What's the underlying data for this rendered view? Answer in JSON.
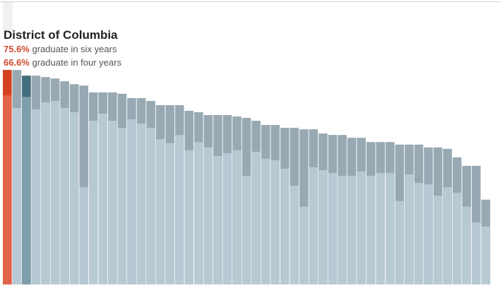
{
  "highlight": {
    "name": "District of Columbia",
    "six_year_value": "75.6%",
    "six_year_text": "graduate in six years",
    "four_year_value": "66.6%",
    "four_year_text": "graduate in four years"
  },
  "colors": {
    "highlight_four": "#e0644a",
    "highlight_six": "#d4421f",
    "selected_four": "#7f9eab",
    "selected_six": "#426e7e",
    "four_year": "#b7c9d3",
    "six_year": "#98a9b3",
    "accent_text": "#d04a2c"
  },
  "chart_data": {
    "type": "bar",
    "ylim": [
      0,
      100
    ],
    "highlight_index": 0,
    "selected_index": 2,
    "series": [
      {
        "name": "six years",
        "values": [
          75.6,
          75.6,
          73.6,
          73.6,
          73.1,
          72.6,
          71.6,
          70.6,
          70.1,
          67.7,
          67.7,
          67.7,
          67.2,
          65.7,
          65.7,
          64.7,
          63.2,
          63.2,
          63.2,
          61.2,
          60.7,
          59.7,
          59.7,
          59.7,
          59.2,
          58.7,
          57.7,
          56.2,
          56.2,
          55.2,
          55.2,
          54.7,
          54.7,
          53.2,
          52.7,
          52.7,
          51.7,
          51.7,
          50.2,
          50.2,
          50.2,
          49.3,
          49.3,
          49.3,
          48.3,
          48.3,
          47.8,
          44.8,
          41.8,
          41.8,
          29.9
        ],
        "note": ""
      },
      {
        "name": "four years",
        "values": [
          66.6,
          62.2,
          66.1,
          61.7,
          64.2,
          64.7,
          62.2,
          60.7,
          34.3,
          57.7,
          60.2,
          57.7,
          55.2,
          58.2,
          56.7,
          55.2,
          51.2,
          49.8,
          52.7,
          47.3,
          50.2,
          48.3,
          45.3,
          46.3,
          47.3,
          38.3,
          46.8,
          44.3,
          43.8,
          40.8,
          34.8,
          27.4,
          41.3,
          40.3,
          39.3,
          38.3,
          38.3,
          39.8,
          38.3,
          39.3,
          39.3,
          29.4,
          38.8,
          35.8,
          35.3,
          31.3,
          34.3,
          32.3,
          27.4,
          21.9,
          20.4
        ]
      }
    ]
  }
}
